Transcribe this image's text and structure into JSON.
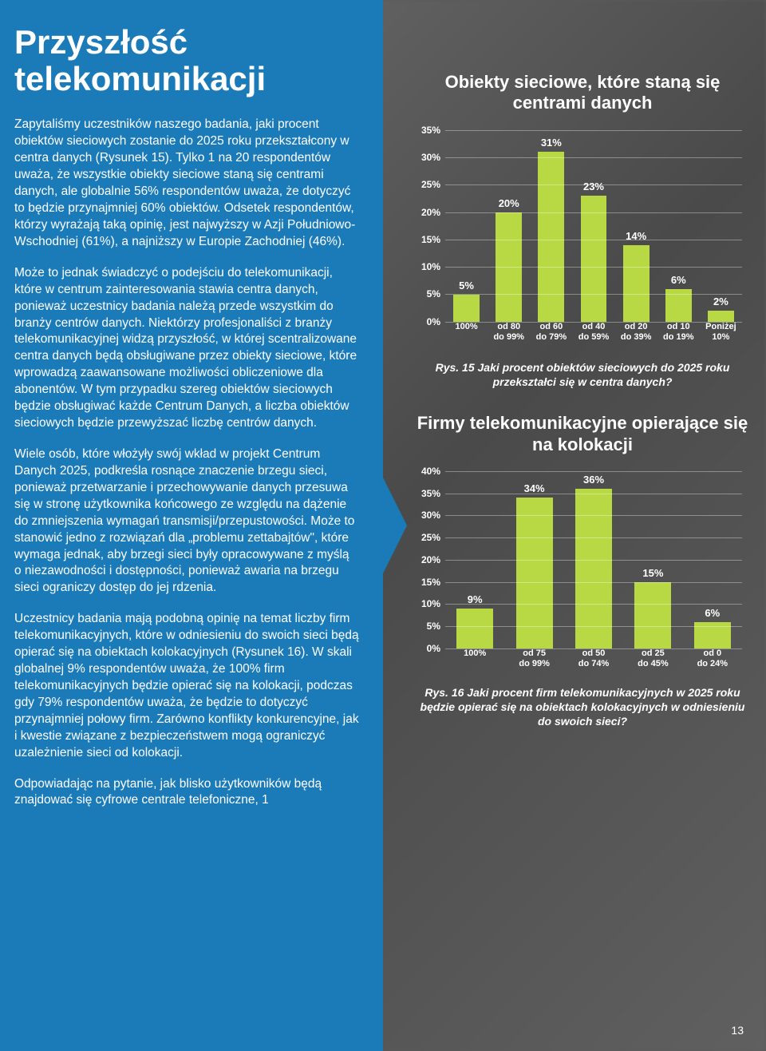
{
  "title": "Przyszłość telekomunikacji",
  "paragraphs": [
    "Zapytaliśmy uczestników naszego badania, jaki procent obiektów sieciowych zostanie do 2025 roku przekształcony w centra danych (Rysunek 15). Tylko 1 na 20 respondentów uważa, że wszystkie obiekty sieciowe staną się centrami danych, ale globalnie 56% respondentów uważa, że dotyczyć to będzie przynajmniej 60% obiektów. Odsetek respondentów, którzy wyrażają taką opinię, jest najwyższy w Azji Południowo-Wschodniej (61%), a najniższy w Europie Zachodniej (46%).",
    "Może to jednak świadczyć o podejściu do telekomunikacji, które w centrum zainteresowania stawia centra danych, ponieważ uczestnicy badania należą przede wszystkim do branży centrów danych. Niektórzy profesjonaliści z branży telekomunikacyjnej widzą przyszłość, w której scentralizowane centra danych będą obsługiwane przez obiekty sieciowe, które wprowadzą zaawansowane możliwości obliczeniowe dla abonentów. W tym przypadku szereg obiektów sieciowych będzie obsługiwać każde Centrum Danych, a liczba obiektów sieciowych będzie przewyższać liczbę centrów danych.",
    "Wiele osób, które włożyły swój wkład w projekt Centrum Danych 2025, podkreśla rosnące znaczenie brzegu sieci, ponieważ przetwarzanie i przechowywanie danych przesuwa się w stronę użytkownika końcowego ze względu na dążenie do zmniejszenia wymagań transmisji/przepustowości. Może to stanowić jedno z rozwiązań dla „problemu zettabajtów\", które wymaga jednak, aby brzegi sieci były opracowywane z myślą o niezawodności i dostępności, ponieważ awaria na brzegu sieci ograniczy dostęp do jej rdzenia.",
    "Uczestnicy badania mają podobną opinię na temat liczby firm telekomunikacyjnych, które w odniesieniu do swoich sieci będą opierać się na obiektach kolokacyjnych (Rysunek 16). W skali globalnej 9% respondentów uważa, że 100% firm telekomunikacyjnych będzie opierać się na kolokacji, podczas gdy 79% respondentów uważa, że będzie to dotyczyć przynajmniej połowy firm. Zarówno konflikty konkurencyjne, jak i kwestie związane z bezpieczeństwem mogą ograniczyć uzależnienie sieci od kolokacji.",
    "Odpowiadając na pytanie, jak blisko użytkowników będą znajdować się cyfrowe centrale telefoniczne, 1"
  ],
  "chart1": {
    "title": "Obiekty sieciowe, które staną się centrami danych",
    "type": "bar",
    "ymax": 35,
    "ystep": 5,
    "bar_color": "#b8d943",
    "grid_color": "rgba(255,255,255,0.35)",
    "categories": [
      "100%",
      "od 80 do 99%",
      "od 60 do 79%",
      "od 40 do 59%",
      "od 20 do 39%",
      "od 10 do 19%",
      "Poniżej 10%"
    ],
    "values": [
      5,
      20,
      31,
      23,
      14,
      6,
      2
    ],
    "caption": "Rys. 15 Jaki procent obiektów sieciowych do 2025 roku przekształci się w centra danych?"
  },
  "chart2": {
    "title": "Firmy telekomunikacyjne opierające się na kolokacji",
    "type": "bar",
    "ymax": 40,
    "ystep": 5,
    "bar_color": "#b8d943",
    "grid_color": "rgba(255,255,255,0.35)",
    "categories": [
      "100%",
      "od 75 do 99%",
      "od 50 do 74%",
      "od 25 do 45%",
      "od 0 do 24%"
    ],
    "values": [
      9,
      34,
      36,
      15,
      6
    ],
    "caption": "Rys. 16 Jaki procent firm telekomunikacyjnych w 2025 roku będzie opierać się na obiektach kolokacyjnych w odniesieniu do swoich sieci?"
  },
  "page_number": "13"
}
